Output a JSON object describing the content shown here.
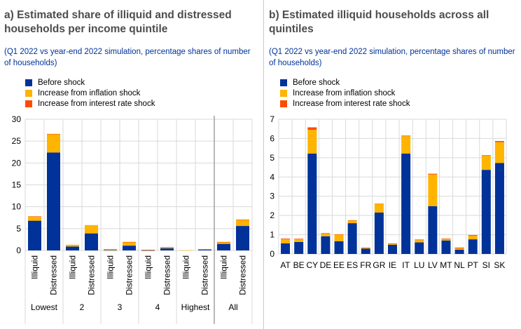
{
  "colors": {
    "before": "#003299",
    "inflation": "#ffb400",
    "rate": "#ff4b00"
  },
  "legend": [
    "Before shock",
    "Increase from inflation shock",
    "Increase from interest rate shock"
  ],
  "chart_data": [
    {
      "type": "bar",
      "stacked": true,
      "title": "a) Estimated share of illiquid and distressed households per income quintile",
      "subtitle": "(Q1 2022 vs year-end 2022 simulation, percentage shares of number of households)",
      "ylim": [
        0,
        30
      ],
      "yticks": [
        0,
        5,
        10,
        15,
        20,
        25,
        30
      ],
      "groups": [
        "Lowest",
        "2",
        "3",
        "4",
        "Highest",
        "All"
      ],
      "subcategories": [
        "Illiquid",
        "Distressed"
      ],
      "series": [
        {
          "name": "Before shock",
          "values": [
            6.8,
            22.4,
            0.9,
            3.9,
            0.05,
            1.1,
            0.02,
            0.5,
            0,
            0.15,
            1.5,
            5.6
          ]
        },
        {
          "name": "Increase from inflation shock",
          "values": [
            0.9,
            4.2,
            0.4,
            1.9,
            0.2,
            0.8,
            0.1,
            0.2,
            0.05,
            0.1,
            0.4,
            1.4
          ]
        },
        {
          "name": "Increase from interest rate shock",
          "values": [
            0.1,
            0.05,
            0,
            0,
            0.05,
            0.05,
            0.05,
            0.05,
            0,
            0.05,
            0.05,
            0.05
          ]
        }
      ]
    },
    {
      "type": "bar",
      "stacked": true,
      "title": "b) Estimated illiquid households across all quintiles",
      "subtitle": "(Q1 2022 vs year-end 2022 simulation, percentage shares of number of households)",
      "ylim": [
        0,
        7
      ],
      "yticks": [
        0,
        1,
        2,
        3,
        4,
        5,
        6,
        7
      ],
      "categories": [
        "AT",
        "BE",
        "CY",
        "DE",
        "EE",
        "ES",
        "FR",
        "GR",
        "IE",
        "IT",
        "LU",
        "LV",
        "MT",
        "NL",
        "PT",
        "SI",
        "SK"
      ],
      "series": [
        {
          "name": "Before shock",
          "values": [
            0.55,
            0.62,
            5.22,
            0.92,
            0.66,
            1.6,
            0.28,
            2.15,
            0.48,
            5.22,
            0.6,
            2.48,
            0.7,
            0.22,
            0.76,
            4.37,
            4.73
          ]
        },
        {
          "name": "Increase from inflation shock",
          "values": [
            0.22,
            0.14,
            1.23,
            0.13,
            0.34,
            0.13,
            0.03,
            0.44,
            0.06,
            0.9,
            0.12,
            1.65,
            0.09,
            0.07,
            0.18,
            0.73,
            1.08
          ]
        },
        {
          "name": "Increase from interest rate shock",
          "values": [
            0.03,
            0.03,
            0.13,
            0.03,
            0.02,
            0.02,
            0.02,
            0.02,
            0.01,
            0.03,
            0.03,
            0.04,
            0.01,
            0.04,
            0.04,
            0.03,
            0.06
          ]
        }
      ]
    }
  ]
}
